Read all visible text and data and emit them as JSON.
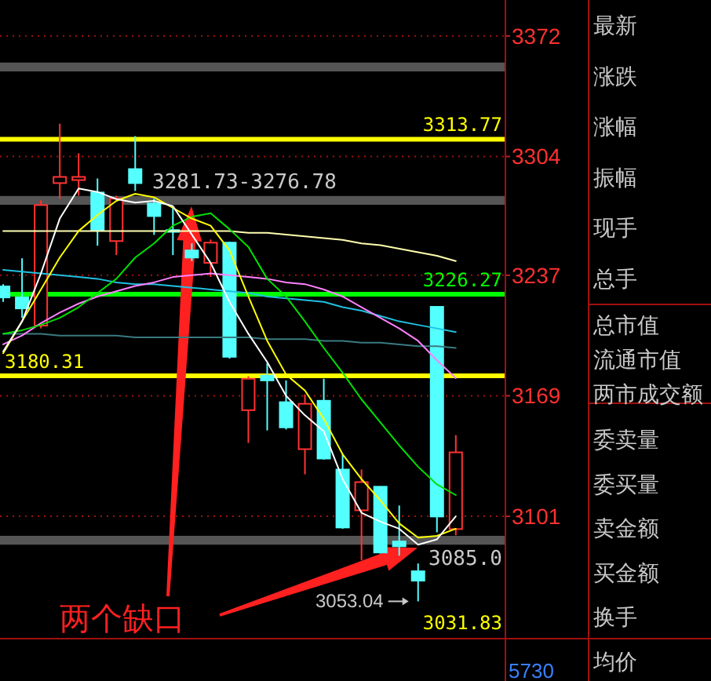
{
  "chart_data": [
    {
      "type": "candlestick",
      "categories": [
        null,
        null,
        null,
        null,
        null,
        null,
        null,
        null,
        null,
        null,
        null,
        null,
        null,
        null,
        null,
        null,
        null,
        null,
        null,
        null,
        null,
        null,
        null,
        null,
        null
      ],
      "ohlc": [
        [
          3230.7,
          3232.0,
          3222.0,
          3224.5
        ],
        [
          3224.5,
          3246.6,
          3213.0,
          3218.3
        ],
        [
          3208.6,
          3279.3,
          3207.0,
          3276.6
        ],
        [
          3289.0,
          3322.5,
          3280.2,
          3292.5
        ],
        [
          3290.7,
          3305.8,
          3281.9,
          3292.5
        ],
        [
          3283.7,
          3291.6,
          3253.7,
          3262.5
        ],
        [
          3256.3,
          3281.9,
          3248.4,
          3280.2
        ],
        [
          3296.9,
          3315.5,
          3284.6,
          3289.0
        ],
        [
          3277.5,
          3280.2,
          3259.8,
          3270.4
        ],
        [
          3262.5,
          3275.7,
          3248.4,
          3261.5
        ],
        [
          3251.0,
          3255.0,
          3245.0,
          3247.0
        ],
        [
          3244.0,
          3257.2,
          3236.0,
          3255.4
        ],
        [
          3255.4,
          3256.0,
          3190.0,
          3191.0
        ],
        [
          3160.9,
          3180.0,
          3142.4,
          3178.6
        ],
        [
          3180.4,
          3187.4,
          3149.5,
          3177.7
        ],
        [
          3165.4,
          3177.7,
          3150.0,
          3151.2
        ],
        [
          3138.9,
          3169.8,
          3124.7,
          3164.5
        ],
        [
          3166.2,
          3178.6,
          3133.0,
          3133.6
        ],
        [
          3127.4,
          3136.2,
          3094.0,
          3094.7
        ],
        [
          3104.4,
          3127.4,
          3076.2,
          3120.3
        ],
        [
          3117.7,
          3118.0,
          3080.0,
          3080.6
        ],
        [
          3086.8,
          3107.1,
          3078.8,
          3084.1
        ],
        [
          3070.0,
          3074.4,
          3053.04,
          3064.7
        ],
        [
          3219.2,
          3219.2,
          3092.0,
          3100.9
        ],
        [
          3093.8,
          3146.8,
          3090.3,
          3137.1
        ]
      ],
      "colors": [
        "#54ffff",
        "#54ffff",
        "#ff3232",
        "#ff3232",
        "#ff3232",
        "#54ffff",
        "#ff3232",
        "#54ffff",
        "#54ffff",
        "#54ffff",
        "#54ffff",
        "#ff3232",
        "#54ffff",
        "#ff3232",
        "#54ffff",
        "#54ffff",
        "#ff3232",
        "#54ffff",
        "#54ffff",
        "#ff3232",
        "#54ffff",
        "#54ffff",
        "#54ffff",
        "#54ffff",
        "#ff3232"
      ],
      "series": [
        {
          "type": "line",
          "color": "#ffffb0",
          "values": [
            3262,
            3262,
            3262,
            3262,
            3262,
            3262,
            3262,
            3262,
            3262,
            3262,
            3262,
            3262,
            3262,
            3261,
            3261,
            3260,
            3259,
            3258,
            3257,
            3255,
            3254,
            3252,
            3250,
            3248,
            3245
          ]
        },
        {
          "type": "line",
          "color": "#3a7a80",
          "values": [
            3204,
            3204,
            3204,
            3203,
            3203,
            3203,
            3203,
            3202,
            3202,
            3202,
            3202,
            3202,
            3202,
            3202,
            3201,
            3201,
            3201,
            3200,
            3200,
            3199,
            3199,
            3198,
            3197,
            3197,
            3196
          ]
        },
        {
          "type": "line",
          "color": "#20c0e0",
          "values": [
            3240,
            3239,
            3238,
            3237,
            3236,
            3235,
            3233,
            3232,
            3232,
            3231,
            3230,
            3229,
            3228,
            3227,
            3225,
            3224,
            3223,
            3222,
            3219,
            3217,
            3214,
            3211,
            3209,
            3207,
            3205
          ]
        },
        {
          "type": "line",
          "color": "#ff80ff",
          "values": [
            3198,
            3203,
            3210,
            3216,
            3221,
            3225,
            3228,
            3231,
            3233,
            3236,
            3237,
            3238,
            3237,
            3236,
            3235,
            3233,
            3232,
            3229,
            3225,
            3219,
            3213,
            3207,
            3200,
            3189,
            3179
          ]
        },
        {
          "type": "line",
          "color": "#00e000",
          "values": [
            3204,
            3206,
            3209,
            3213,
            3219,
            3227,
            3235,
            3247,
            3255,
            3265,
            3270,
            3272,
            3263,
            3253,
            3235,
            3225,
            3211,
            3196,
            3182,
            3167,
            3154,
            3141,
            3129,
            3119,
            3113
          ]
        },
        {
          "type": "line",
          "color": "#ffff00",
          "values": [
            3193,
            3211,
            3229,
            3247,
            3262,
            3271,
            3279,
            3283,
            3281,
            3275,
            3269,
            3265,
            3251,
            3225,
            3200,
            3181,
            3172,
            3156,
            3136,
            3122,
            3110,
            3097,
            3089,
            3090,
            3094
          ]
        },
        {
          "type": "line",
          "color": "#ffffff",
          "values": [
            3194,
            3211,
            3238,
            3269,
            3286,
            3284,
            3280,
            3278,
            3279,
            3276,
            3260,
            3244,
            3222,
            3204,
            3188,
            3169,
            3158,
            3149,
            3122,
            3103,
            3098,
            3094,
            3085,
            3088,
            3101
          ]
        }
      ],
      "ylim": [
        3032.0,
        3392.3
      ],
      "yticks": [
        3101,
        3169,
        3237,
        3304,
        3372
      ],
      "grid": "y",
      "ref_lines": [
        {
          "axis": "y",
          "value": 3313.77,
          "label": "3313.77",
          "color": "#ffff00"
        },
        {
          "axis": "y",
          "value": 3226.27,
          "label": "3226.27",
          "color": "#00ff00"
        },
        {
          "axis": "y",
          "value": 3180.31,
          "label": "3180.31",
          "color": "#ffff00"
        }
      ],
      "bands": [
        {
          "axis": "y",
          "from": 3352,
          "to": 3357,
          "color": "#555555"
        },
        {
          "axis": "y",
          "from": 3276.78,
          "to": 3281.73,
          "label": "3281.73-3276.78",
          "color": "#555555"
        },
        {
          "axis": "y",
          "from": 3085,
          "to": 3090,
          "label": "3085.0",
          "color": "#555555"
        }
      ],
      "annotations": [
        "两个缺口",
        "5730",
        "3053.04",
        "3031.83"
      ]
    },
    {
      "type": "other",
      "annotations": [
        "最新",
        "涨跌",
        "涨幅",
        "振幅",
        "现手",
        "总手",
        "总市值",
        "流通市值",
        "两市成交额",
        "委卖量",
        "委买量",
        "卖金额",
        "买金额",
        "换手",
        "均价"
      ]
    }
  ]
}
